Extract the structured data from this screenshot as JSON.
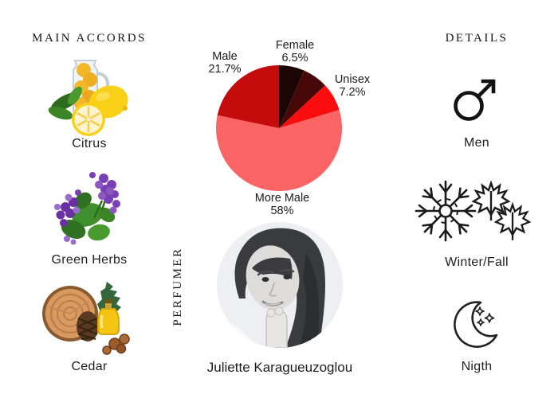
{
  "page": {
    "background": "#ffffff",
    "text_color": "#1f1f1f"
  },
  "main_accords": {
    "title": "MAIN ACCORDS",
    "items": [
      {
        "name": "Citrus",
        "image": "citrus-lemons-photo"
      },
      {
        "name": "Green Herbs",
        "image": "violet-flowers-photo"
      },
      {
        "name": "Cedar",
        "image": "cedar-wood-pinecone-oil-photo"
      }
    ]
  },
  "perfumer": {
    "title": "PERFUMER",
    "name": "Juliette Karagueuzoglou",
    "photo": "juliette-karagueuzoglou-portrait-photo"
  },
  "details": {
    "title": "DETAILS",
    "items": [
      {
        "label": "Men",
        "icon": "male-mars-icon"
      },
      {
        "label": "Winter/Fall",
        "icon": "snowflake-and-maple-leaves-icon"
      },
      {
        "label": "Nigth",
        "icon": "crescent-moon-with-stars-icon"
      }
    ]
  },
  "chart_data": {
    "type": "pie",
    "start_angle_deg": 0,
    "direction": "clockwise",
    "center": [
      80,
      80
    ],
    "radius": 79,
    "legend_position": "outside-labels",
    "slices": [
      {
        "key": "female",
        "label": "Female",
        "value": 6.5,
        "value_text": "6.5%",
        "color": "#1c0505"
      },
      {
        "key": "more-female",
        "label": "",
        "value": 6.6,
        "value_text": "",
        "color": "#470808"
      },
      {
        "key": "unisex",
        "label": "Unisex",
        "value": 7.2,
        "value_text": "7.2%",
        "color": "#fb0d0d"
      },
      {
        "key": "more-male",
        "label": "More Male",
        "value": 58,
        "value_text": "58%",
        "color": "#fa6464"
      },
      {
        "key": "male",
        "label": "Male",
        "value": 21.7,
        "value_text": "21.7%",
        "color": "#c40c0c"
      }
    ]
  }
}
